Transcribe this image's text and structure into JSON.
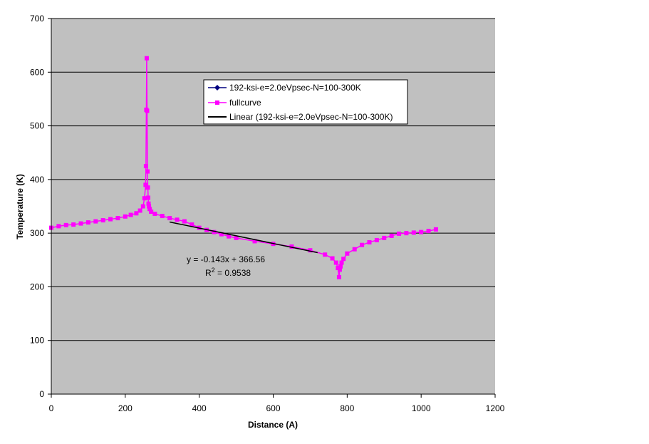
{
  "chart_data": {
    "type": "scatter",
    "title": "",
    "xlabel": "Distance (A)",
    "ylabel": "Temperature (K)",
    "xlim": [
      0,
      1200
    ],
    "ylim": [
      0,
      700
    ],
    "xticks": [
      0,
      200,
      400,
      600,
      800,
      1000,
      1200
    ],
    "yticks": [
      0,
      100,
      200,
      300,
      400,
      500,
      600,
      700
    ],
    "xtick_labels": [
      "0",
      "200",
      "400",
      "600",
      "800",
      "1000",
      "1200"
    ],
    "ytick_labels": [
      "0",
      "100",
      "200",
      "300",
      "400",
      "500",
      "600",
      "700"
    ],
    "grid": "horizontal",
    "plot_background": "#c0c0c0",
    "legend_position": "top-center",
    "series": [
      {
        "name": "192-ksi-e=2.0eVpsec-N=100-300K",
        "color": "#000080",
        "marker": "diamond",
        "x": [],
        "y": []
      },
      {
        "name": "fullcurve",
        "color": "#ff00ff",
        "marker": "square",
        "x": [
          0,
          20,
          40,
          60,
          80,
          100,
          120,
          140,
          160,
          180,
          200,
          215,
          230,
          240,
          248,
          252,
          255,
          256,
          257,
          258,
          259,
          260,
          261,
          262,
          263,
          264,
          266,
          270,
          280,
          300,
          320,
          340,
          360,
          380,
          400,
          420,
          440,
          460,
          480,
          500,
          550,
          600,
          650,
          700,
          740,
          760,
          770,
          775,
          778,
          780,
          782,
          785,
          790,
          800,
          820,
          840,
          860,
          880,
          900,
          920,
          940,
          960,
          980,
          1000,
          1020,
          1040
        ],
        "y": [
          310,
          313,
          315,
          316,
          318,
          320,
          322,
          324,
          326,
          328,
          331,
          334,
          337,
          342,
          350,
          365,
          390,
          425,
          530,
          626,
          528,
          415,
          385,
          366,
          355,
          350,
          345,
          340,
          336,
          332,
          328,
          325,
          322,
          316,
          310,
          306,
          302,
          298,
          294,
          291,
          285,
          280,
          275,
          268,
          260,
          253,
          245,
          235,
          218,
          232,
          238,
          245,
          252,
          262,
          270,
          278,
          283,
          287,
          291,
          295,
          299,
          300,
          301,
          302,
          304,
          307
        ]
      },
      {
        "name": "Linear (192-ksi-e=2.0eVpsec-N=100-300K)",
        "color": "#000000",
        "marker": "none",
        "x": [
          320,
          720
        ],
        "y": [
          320.8,
          263.6
        ]
      }
    ],
    "annotations": {
      "equation": "y = -0.143x + 366.56",
      "r2_prefix": "R",
      "r2_superscript": "2",
      "r2_suffix": " = 0.9538"
    }
  }
}
